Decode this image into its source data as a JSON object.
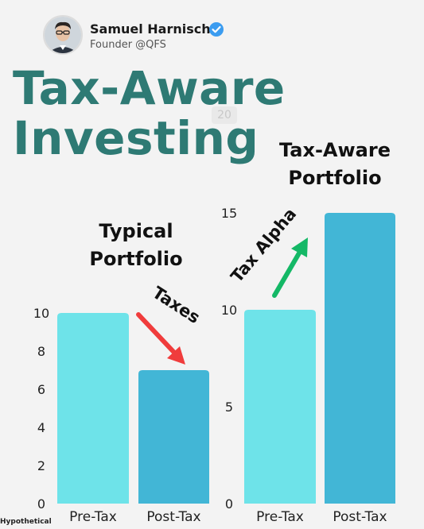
{
  "author": {
    "name": "Samuel Harnisch",
    "handle": "Founder @QFS",
    "verified_color": "#3b9cf0"
  },
  "headline": [
    "Tax-Aware",
    "Investing"
  ],
  "ghost_label": "20",
  "footnote": "Hypothetical",
  "annotations": {
    "taxes": {
      "text": "Taxes",
      "arrow_color": "#f03c3c"
    },
    "tax_alpha": {
      "text": "Tax Alpha",
      "arrow_color": "#14b866"
    }
  },
  "colors": {
    "pre_tax": "#6ee3e9",
    "post_tax": "#42b6d6",
    "headline": "#2e7a74"
  },
  "chart_data": [
    {
      "type": "bar",
      "title": "Typical Portfolio",
      "title_lines": [
        "Typical",
        "Portfolio"
      ],
      "categories": [
        "Pre-Tax",
        "Post-Tax"
      ],
      "values": [
        10,
        7
      ],
      "yticks": [
        0,
        2,
        4,
        6,
        8,
        10
      ],
      "ylim": [
        0,
        10
      ],
      "grid": false
    },
    {
      "type": "bar",
      "title": "Tax-Aware Portfolio",
      "title_lines": [
        "Tax-Aware",
        "Portfolio"
      ],
      "categories": [
        "Pre-Tax",
        "Post-Tax"
      ],
      "values": [
        10,
        15
      ],
      "yticks": [
        0,
        5,
        10,
        15
      ],
      "ylim": [
        0,
        15
      ],
      "grid": false
    }
  ]
}
